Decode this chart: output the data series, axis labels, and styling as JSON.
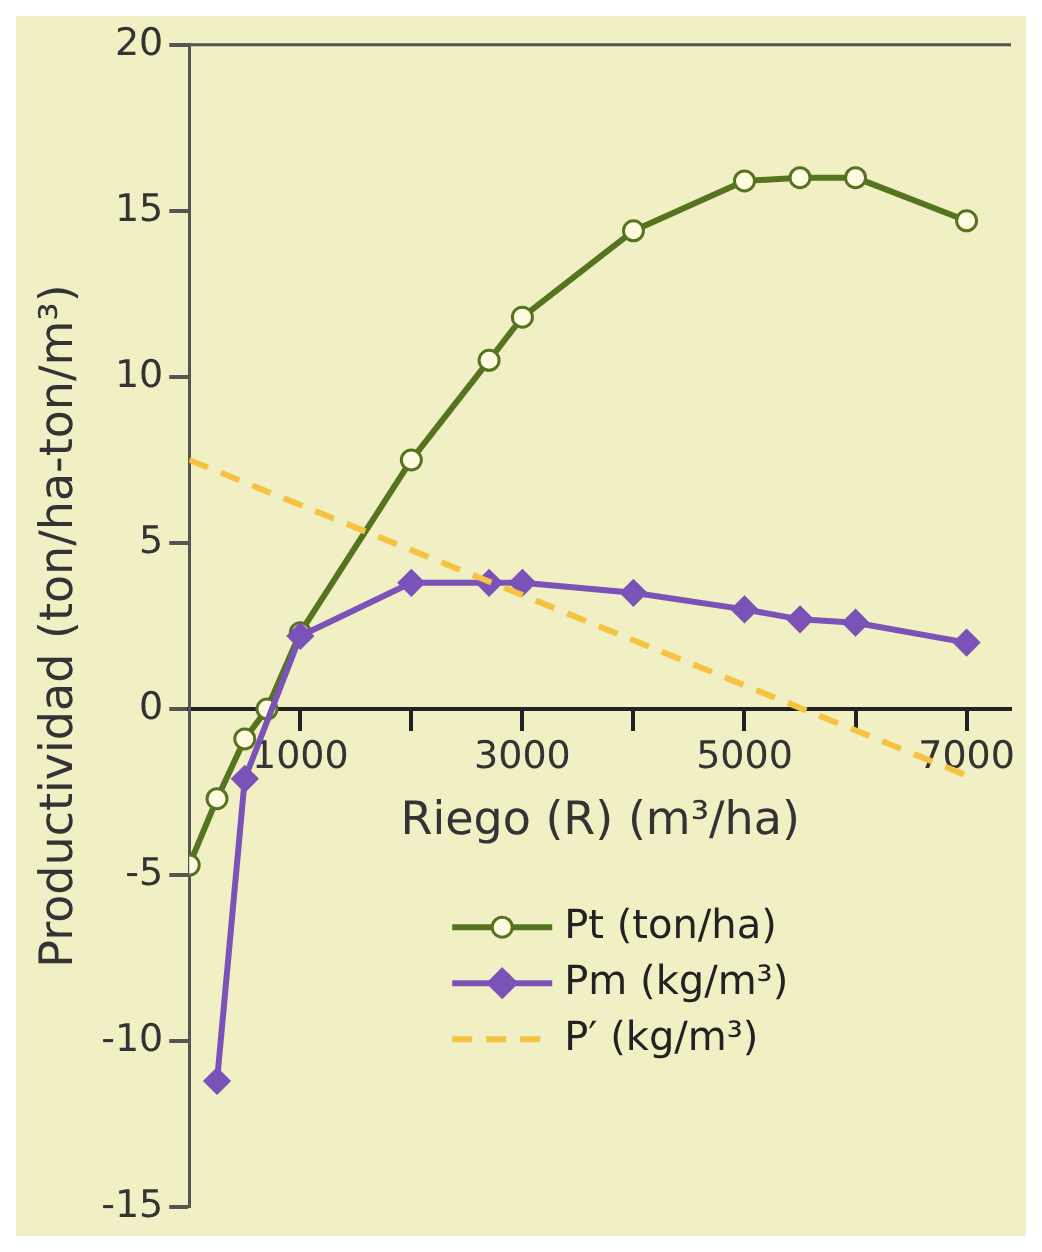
{
  "chart_data": {
    "type": "line",
    "xlabel": "Riego (R) (m³/ha)",
    "ylabel": "Productividad (ton/ha-ton/m³)",
    "xlim": [
      0,
      7400
    ],
    "ylim": [
      -15,
      20
    ],
    "xticks": [
      {
        "value": 1000,
        "label": "1000"
      },
      {
        "value": 2000,
        "label": null
      },
      {
        "value": 3000,
        "label": "3000"
      },
      {
        "value": 4000,
        "label": null
      },
      {
        "value": 5000,
        "label": "5000"
      },
      {
        "value": 6000,
        "label": null
      },
      {
        "value": 7000,
        "label": "7000"
      }
    ],
    "yticks": [
      -15,
      -10,
      -5,
      0,
      5,
      10,
      15,
      20
    ],
    "grid": false,
    "legend": "bottom",
    "series": [
      {
        "name": "Pt (ton/ha)",
        "color": "#56741f",
        "marker": "circle",
        "line_style": "solid",
        "x": [
          0,
          250,
          500,
          700,
          1000,
          2000,
          2700,
          3000,
          4000,
          5000,
          5500,
          6000,
          7000
        ],
        "values": [
          -4.7,
          -2.7,
          -0.9,
          0,
          2.3,
          7.5,
          10.5,
          11.8,
          14.4,
          15.9,
          16.0,
          16.0,
          14.7
        ]
      },
      {
        "name": "Pm (kg/m³)",
        "color": "#7b52b8",
        "marker": "diamond",
        "line_style": "solid",
        "x": [
          250,
          500,
          1000,
          2000,
          2700,
          3000,
          4000,
          5000,
          5500,
          6000,
          7000
        ],
        "values": [
          -11.2,
          -2.1,
          2.2,
          3.8,
          3.8,
          3.8,
          3.5,
          3.0,
          2.7,
          2.6,
          2.0
        ]
      },
      {
        "name": "P′ (kg/m³)",
        "color": "#f5c242",
        "marker": "none",
        "line_style": "dashed",
        "x": [
          0,
          7000
        ],
        "values": [
          7.5,
          -2.0
        ]
      }
    ]
  }
}
